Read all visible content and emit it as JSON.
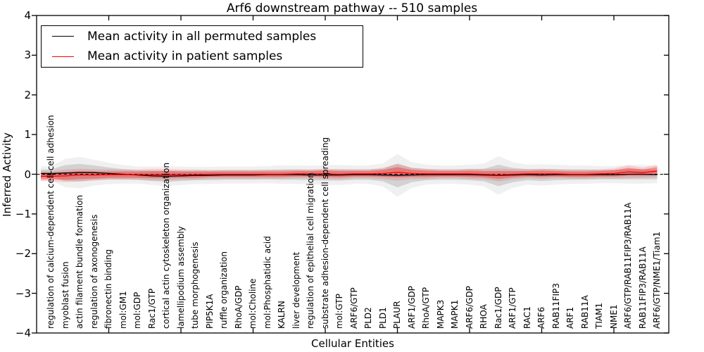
{
  "figure": {
    "title": "Arf6 downstream pathway -- 510 samples",
    "xlabel": "Cellular Entities",
    "ylabel": "Inferred Activity"
  },
  "legend": {
    "items": [
      {
        "label": "Mean activity in all permuted samples",
        "color": "#000000"
      },
      {
        "label": "Mean activity in patient samples",
        "color": "#ff0000"
      }
    ]
  },
  "chart_data": {
    "type": "line",
    "title": "Arf6 downstream pathway -- 510 samples",
    "xlabel": "Cellular Entities",
    "ylabel": "Inferred Activity",
    "ylim": [
      -4,
      4
    ],
    "yticks": [
      4,
      3,
      2,
      1,
      0,
      -1,
      -2,
      -3,
      -4
    ],
    "ytick_labels": [
      "4",
      "3",
      "2",
      "1",
      "0",
      "−1",
      "−2",
      "−3",
      "−4"
    ],
    "x_major_tick_values": [
      5,
      10,
      15,
      20,
      25,
      30,
      35,
      40
    ],
    "grid": false,
    "legend_position": "upper left",
    "zero_line": {
      "y": 0,
      "style": "dashed",
      "color": "#000000"
    },
    "band_style": {
      "permuted_fill": "rgba(0,0,0,0.12)",
      "permuted_outer_fill": "rgba(0,0,0,0.06)",
      "patient_fill": "rgba(255,0,0,0.32)",
      "patient_outer_fill": "rgba(255,0,0,0.14)"
    },
    "categories": [
      "regulation of calcium-dependent cell-cell adhesion",
      "myoblast fusion",
      "actin filament bundle formation",
      "regulation of axonogenesis",
      "fibronectin binding",
      "mol:GM1",
      "mol:GDP",
      "Rac1/GTP",
      "cortical actin cytoskeleton organization",
      "lamellipodium assembly",
      "tube morphogenesis",
      "PIP5K1A",
      "ruffle organization",
      "RhoA/GDP",
      "mol:Choline",
      "mol:Phosphatidic acid",
      "KALRN",
      "liver development",
      "regulation of epithelial cell migration",
      "substrate adhesion-dependent cell spreading",
      "mol:GTP",
      "ARF6/GTP",
      "PLD2",
      "PLD1",
      "PLAUR",
      "ARF1/GDP",
      "RhoA/GTP",
      "MAPK3",
      "MAPK1",
      "ARF6/GDP",
      "RHOA",
      "Rac1/GDP",
      "ARF1/GTP",
      "RAC1",
      "ARF6",
      "RAB11FIP3",
      "ARF1",
      "RAB11A",
      "TIAM1",
      "NME1",
      "ARF6/GTP/RAB11FIP3/RAB11A",
      "RAB11FIP3/RAB11A",
      "ARF6/GTP/NME1/Tiam1"
    ],
    "series": [
      {
        "name": "Mean activity in all permuted samples",
        "color": "#000000",
        "line_style": "solid",
        "mean": [
          0.02,
          0.03,
          0.04,
          0.04,
          0.02,
          0.0,
          -0.02,
          -0.04,
          -0.05,
          -0.04,
          -0.03,
          -0.03,
          -0.02,
          -0.02,
          -0.02,
          -0.01,
          -0.01,
          -0.01,
          -0.02,
          -0.02,
          -0.02,
          -0.01,
          -0.01,
          -0.02,
          -0.03,
          -0.02,
          -0.01,
          -0.01,
          -0.01,
          -0.01,
          -0.02,
          -0.03,
          -0.02,
          -0.01,
          -0.02,
          -0.01,
          -0.01,
          -0.01,
          -0.01,
          -0.01,
          0.0,
          0.0,
          -0.01
        ],
        "std": [
          0.1,
          0.2,
          0.22,
          0.18,
          0.15,
          0.13,
          0.12,
          0.13,
          0.14,
          0.13,
          0.12,
          0.12,
          0.12,
          0.12,
          0.12,
          0.12,
          0.13,
          0.13,
          0.13,
          0.14,
          0.14,
          0.13,
          0.13,
          0.16,
          0.3,
          0.18,
          0.14,
          0.13,
          0.13,
          0.14,
          0.16,
          0.27,
          0.18,
          0.14,
          0.15,
          0.14,
          0.13,
          0.13,
          0.12,
          0.12,
          0.13,
          0.13,
          0.12
        ]
      },
      {
        "name": "Mean activity in patient samples",
        "color": "#ff0000",
        "line_style": "solid",
        "mean": [
          -0.05,
          -0.04,
          -0.02,
          -0.02,
          -0.01,
          -0.01,
          -0.01,
          -0.01,
          -0.01,
          -0.01,
          -0.01,
          0.0,
          0.0,
          0.0,
          0.0,
          0.0,
          0.0,
          0.01,
          0.01,
          0.01,
          0.0,
          0.01,
          0.01,
          0.02,
          0.05,
          0.02,
          0.01,
          0.01,
          0.01,
          0.01,
          0.0,
          -0.02,
          0.0,
          0.01,
          0.01,
          0.01,
          0.0,
          0.0,
          0.01,
          0.02,
          0.06,
          0.04,
          0.08
        ],
        "std": [
          0.08,
          0.1,
          0.1,
          0.09,
          0.08,
          0.08,
          0.08,
          0.09,
          0.09,
          0.08,
          0.08,
          0.07,
          0.07,
          0.07,
          0.07,
          0.07,
          0.07,
          0.07,
          0.07,
          0.08,
          0.08,
          0.07,
          0.07,
          0.09,
          0.13,
          0.09,
          0.08,
          0.07,
          0.07,
          0.08,
          0.08,
          0.1,
          0.08,
          0.07,
          0.08,
          0.07,
          0.07,
          0.07,
          0.07,
          0.08,
          0.1,
          0.08,
          0.1
        ]
      }
    ]
  }
}
